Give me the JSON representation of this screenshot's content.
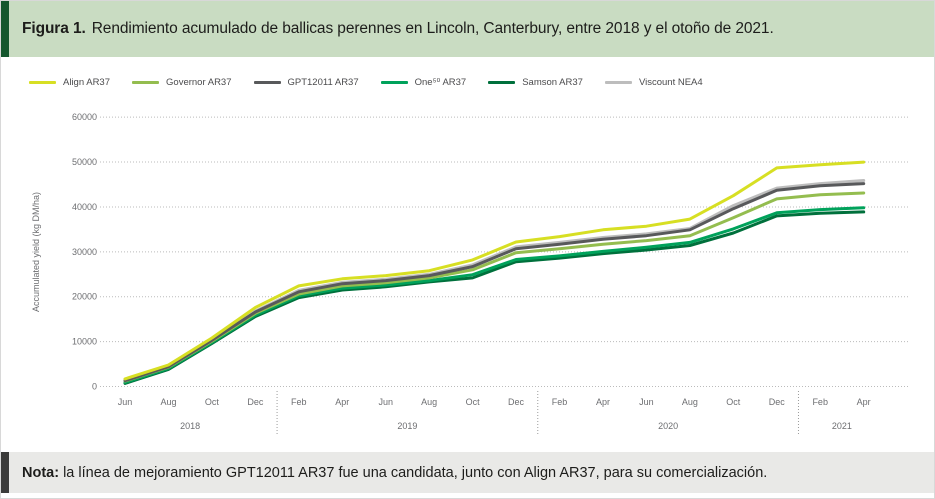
{
  "figure": {
    "label": "Figura 1.",
    "title": "Rendimiento acumulado de ballicas perennes en Lincoln, Canterbury, entre 2018 y el otoño de 2021.",
    "bg_color": "#c9dcc2",
    "accent_color": "#14572d"
  },
  "note": {
    "label": "Nota:",
    "text": "la línea de mejoramiento GPT12011 AR37 fue una candidata, junto con Align AR37, para su comercialización.",
    "bg_color": "#e9e9e7",
    "accent_color": "#3b3b3a"
  },
  "chart_data": {
    "type": "line",
    "title": "",
    "xlabel": "",
    "ylabel": "Accumulated yield (kg DM/ha)",
    "ylim": [
      0,
      60000
    ],
    "yticks": [
      0,
      10000,
      20000,
      30000,
      40000,
      50000,
      60000
    ],
    "grid": "dotted horizontal gridlines",
    "legend_position": "top-left",
    "x_ticks": [
      "Jun",
      "Aug",
      "Oct",
      "Dec",
      "Feb",
      "Apr",
      "Jun",
      "Aug",
      "Oct",
      "Dec",
      "Feb",
      "Apr",
      "Jun",
      "Aug",
      "Oct",
      "Dec",
      "Feb",
      "Apr"
    ],
    "year_groups": [
      {
        "label": "2018",
        "span": [
          0,
          3
        ]
      },
      {
        "label": "2019",
        "span": [
          4,
          9
        ]
      },
      {
        "label": "2020",
        "span": [
          10,
          15
        ]
      },
      {
        "label": "2021",
        "span": [
          16,
          17
        ]
      }
    ],
    "series": [
      {
        "name": "Align AR37",
        "color": "#d7df23",
        "values": [
          1700,
          4800,
          10800,
          17600,
          22400,
          24000,
          24700,
          25800,
          28200,
          32200,
          33400,
          34900,
          35700,
          37300,
          42500,
          48700,
          49400,
          50000
        ]
      },
      {
        "name": "Governor AR37",
        "color": "#94bd4f",
        "values": [
          1200,
          4300,
          10100,
          16300,
          20600,
          22400,
          23100,
          24200,
          26000,
          29800,
          30700,
          31700,
          32500,
          33600,
          37600,
          41800,
          42700,
          43100
        ]
      },
      {
        "name": "GPT12011 AR37",
        "color": "#58595b",
        "values": [
          1300,
          4400,
          10300,
          16600,
          21100,
          22900,
          23600,
          24700,
          26700,
          30700,
          31700,
          32800,
          33600,
          34900,
          39600,
          43700,
          44700,
          45200
        ]
      },
      {
        "name": "One⁵⁰ AR37",
        "color": "#00a25b",
        "values": [
          900,
          4000,
          9800,
          15900,
          20200,
          21900,
          22600,
          23600,
          24900,
          28300,
          29100,
          30100,
          31000,
          32100,
          35100,
          38700,
          39400,
          39800
        ]
      },
      {
        "name": "Samson AR37",
        "color": "#00703c",
        "values": [
          700,
          3800,
          9600,
          15600,
          19800,
          21500,
          22200,
          23300,
          24200,
          27800,
          28600,
          29600,
          30400,
          31400,
          34200,
          38000,
          38600,
          38900
        ]
      },
      {
        "name": "Viscount NEA4",
        "color": "#bdbdbd",
        "values": [
          1400,
          4500,
          10400,
          16800,
          21400,
          23200,
          23900,
          25000,
          27100,
          31100,
          32100,
          33200,
          34000,
          35200,
          40300,
          44200,
          45200,
          45900
        ]
      }
    ],
    "draw_order": [
      "Samson AR37",
      "One⁵⁰ AR37",
      "Governor AR37",
      "Viscount NEA4",
      "GPT12011 AR37",
      "Align AR37"
    ]
  }
}
